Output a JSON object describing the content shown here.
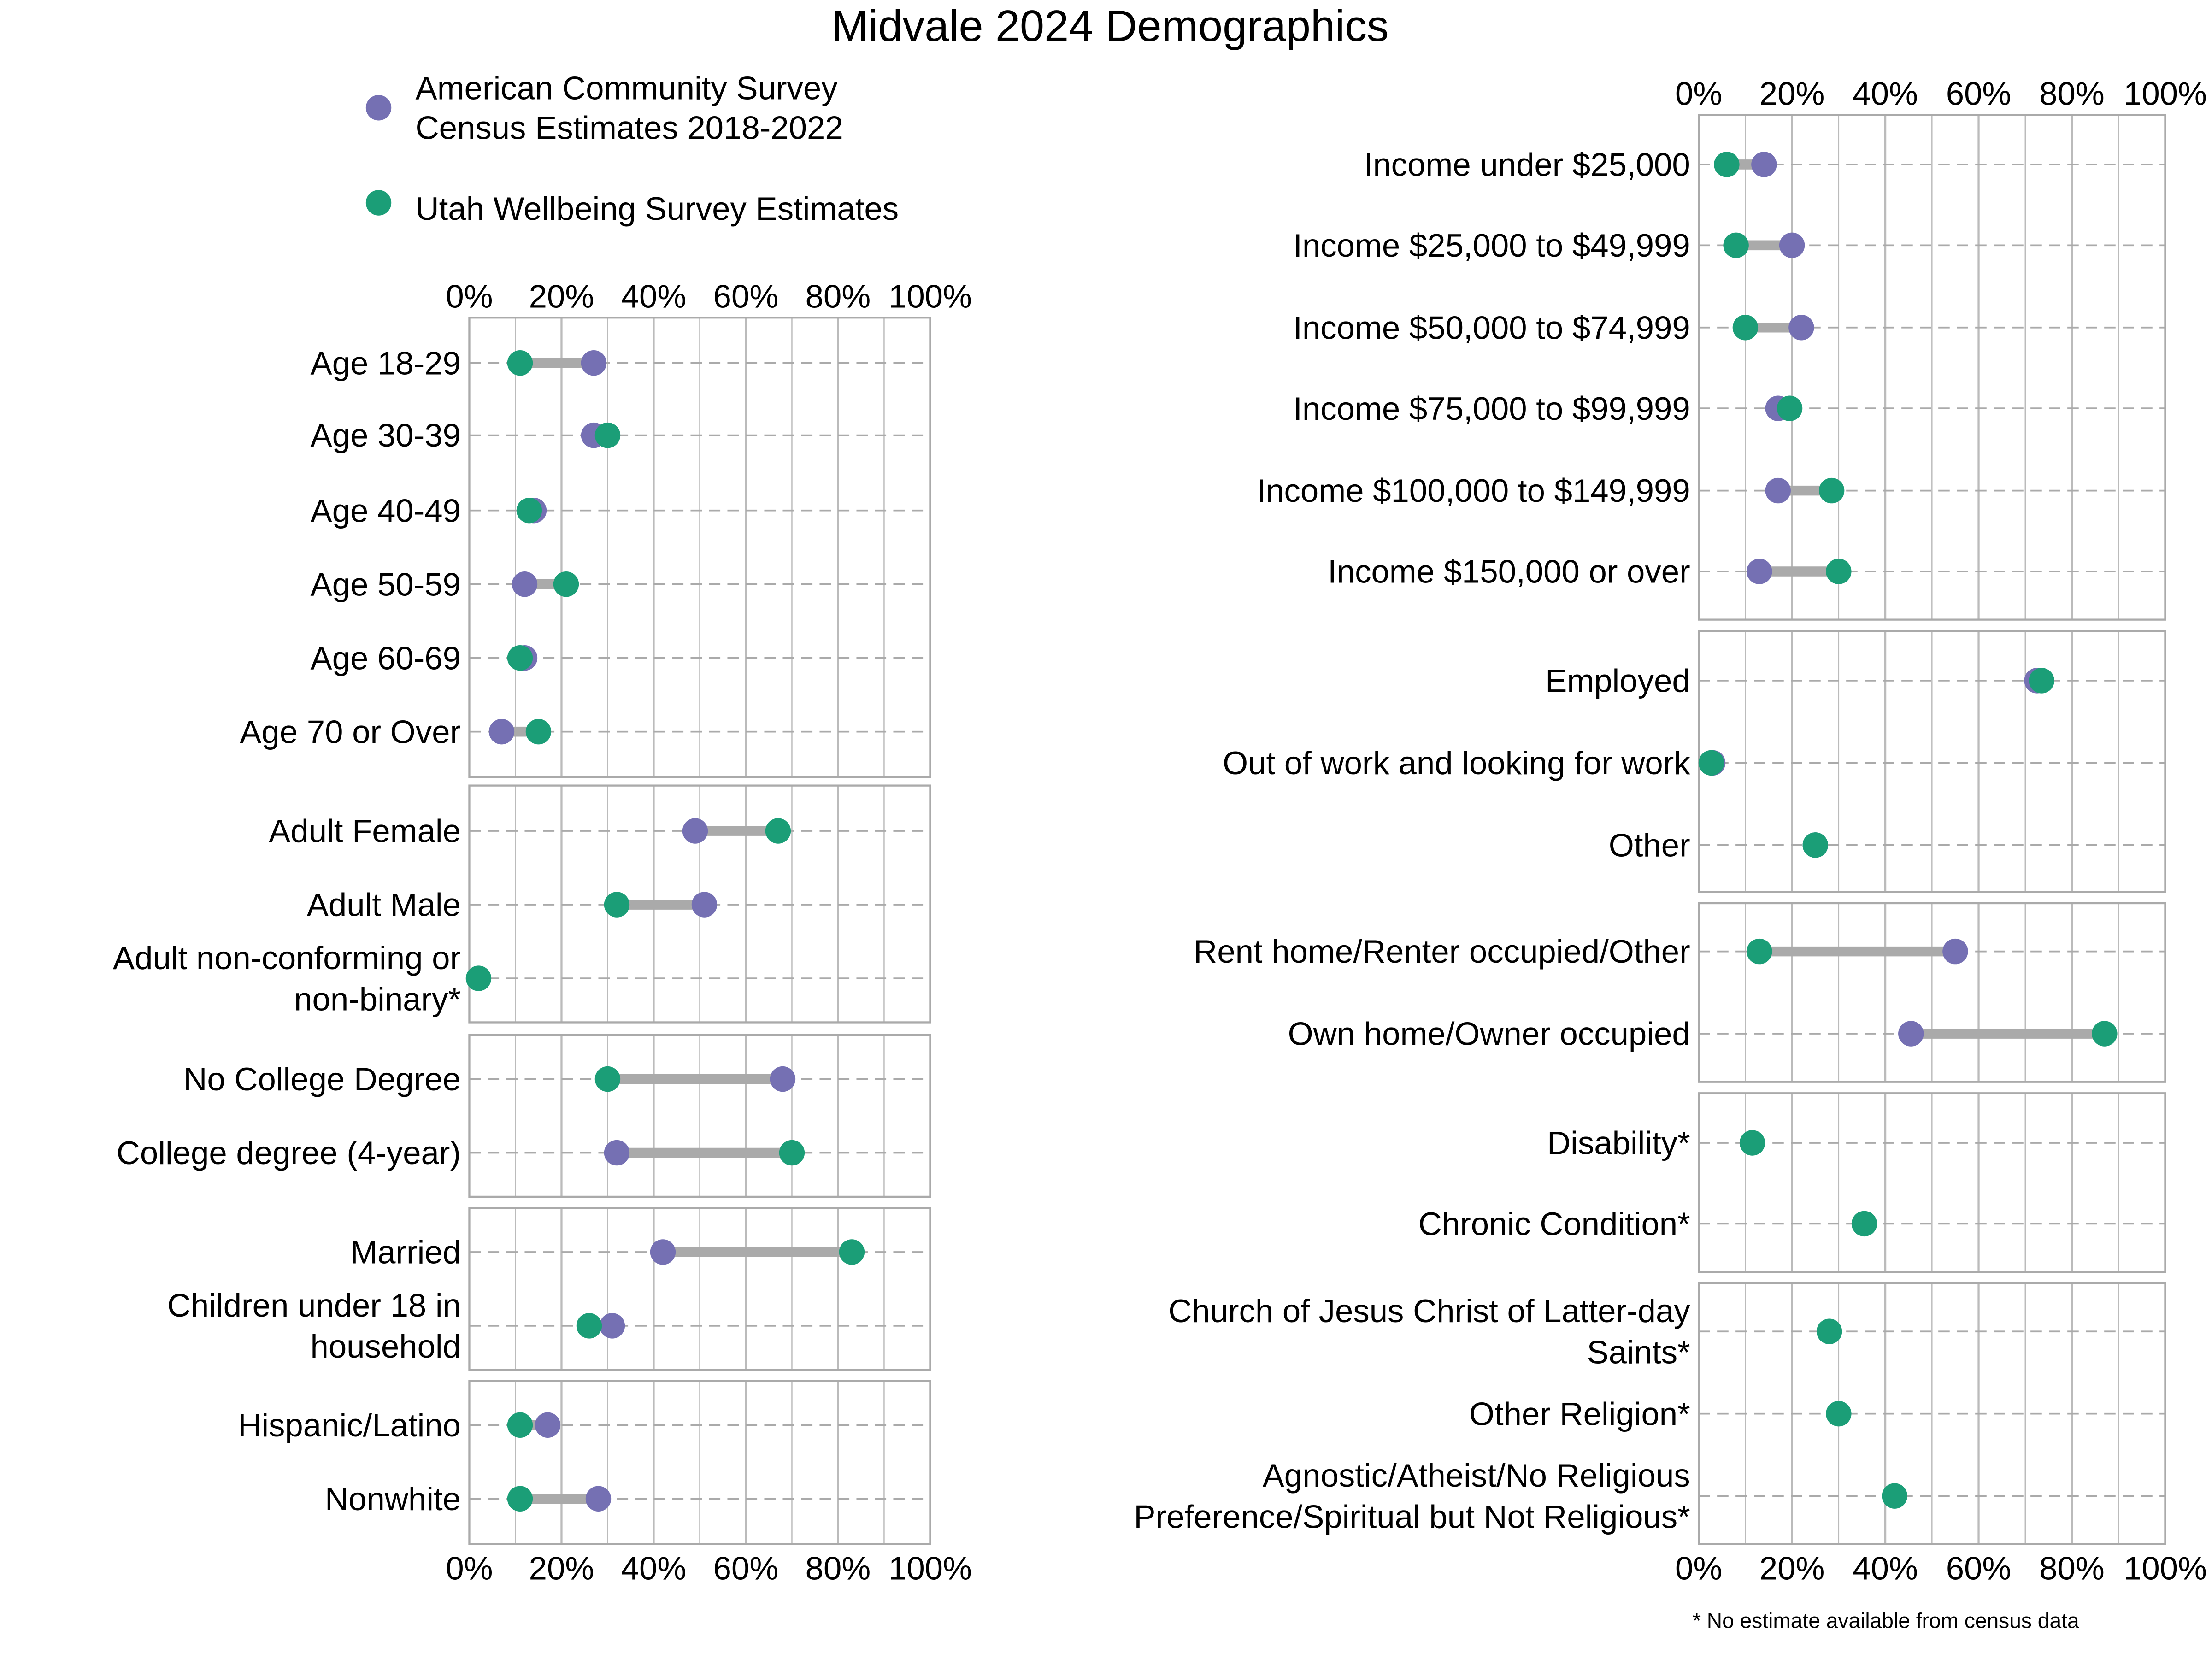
{
  "chart_data": {
    "type": "dumbbell",
    "title": "Midvale 2024 Demographics",
    "footnote": "* No estimate available from census data",
    "xlim": [
      0,
      100
    ],
    "x_ticks": [
      "0%",
      "20%",
      "40%",
      "60%",
      "80%",
      "100%"
    ],
    "grid": true,
    "legend_placement": "top-left",
    "series": [
      {
        "name": "American Community Survey\nCensus Estimates 2018-2022",
        "key": "acs",
        "color": "#7570b3"
      },
      {
        "name": "Utah Wellbeing Survey Estimates",
        "key": "uws",
        "color": "#1b9e77"
      }
    ],
    "connector_color": "#aaaaaa",
    "panels": [
      {
        "column": "left",
        "rows": [
          {
            "label": "Age 18-29",
            "acs": 27,
            "uws": 11
          },
          {
            "label": "Age 30-39",
            "acs": 27,
            "uws": 30
          },
          {
            "label": "Age 40-49",
            "acs": 14,
            "uws": 13
          },
          {
            "label": "Age 50-59",
            "acs": 12,
            "uws": 21
          },
          {
            "label": "Age 60-69",
            "acs": 12,
            "uws": 11
          },
          {
            "label": "Age 70 or Over",
            "acs": 7,
            "uws": 15
          }
        ]
      },
      {
        "column": "left",
        "rows": [
          {
            "label": "Adult Female",
            "acs": 49,
            "uws": 67
          },
          {
            "label": "Adult Male",
            "acs": 51,
            "uws": 32
          },
          {
            "label": "Adult non-conforming or\nnon-binary*",
            "acs": null,
            "uws": 2
          }
        ]
      },
      {
        "column": "left",
        "rows": [
          {
            "label": "No College Degree",
            "acs": 68,
            "uws": 30
          },
          {
            "label": "College degree (4-year)",
            "acs": 32,
            "uws": 70
          }
        ]
      },
      {
        "column": "left",
        "rows": [
          {
            "label": "Married",
            "acs": 42,
            "uws": 83
          },
          {
            "label": "Children under 18 in\nhousehold",
            "acs": 31,
            "uws": 26
          }
        ]
      },
      {
        "column": "left",
        "rows": [
          {
            "label": "Hispanic/Latino",
            "acs": 17,
            "uws": 11
          },
          {
            "label": "Nonwhite",
            "acs": 28,
            "uws": 11
          }
        ]
      },
      {
        "column": "right",
        "rows": [
          {
            "label": "Income under $25,000",
            "acs": 14,
            "uws": 6
          },
          {
            "label": "Income $25,000 to $49,999",
            "acs": 20,
            "uws": 8
          },
          {
            "label": "Income $50,000 to $74,999",
            "acs": 22,
            "uws": 10
          },
          {
            "label": "Income $75,000 to $99,999",
            "acs": 17,
            "uws": 19.5
          },
          {
            "label": "Income $100,000 to $149,999",
            "acs": 17,
            "uws": 28.5
          },
          {
            "label": "Income $150,000 or over",
            "acs": 13,
            "uws": 30
          }
        ]
      },
      {
        "column": "right",
        "rows": [
          {
            "label": "Employed",
            "acs": 72.5,
            "uws": 73.5
          },
          {
            "label": "Out of work and looking for work",
            "acs": 3,
            "uws": 2.7
          },
          {
            "label": "Other",
            "acs": 25,
            "uws": 25
          }
        ]
      },
      {
        "column": "right",
        "rows": [
          {
            "label": "Rent home/Renter occupied/Other",
            "acs": 55,
            "uws": 13
          },
          {
            "label": "Own home/Owner occupied",
            "acs": 45.5,
            "uws": 87
          }
        ]
      },
      {
        "column": "right",
        "rows": [
          {
            "label": "Disability*",
            "acs": null,
            "uws": 11.5
          },
          {
            "label": "Chronic Condition*",
            "acs": null,
            "uws": 35.5
          }
        ]
      },
      {
        "column": "right",
        "rows": [
          {
            "label": "Church of Jesus Christ of Latter-day\nSaints*",
            "acs": null,
            "uws": 28
          },
          {
            "label": "Other Religion*",
            "acs": null,
            "uws": 30
          },
          {
            "label": "Agnostic/Atheist/No Religious\nPreference/Spiritual but Not Religious*",
            "acs": null,
            "uws": 42
          }
        ]
      }
    ]
  }
}
